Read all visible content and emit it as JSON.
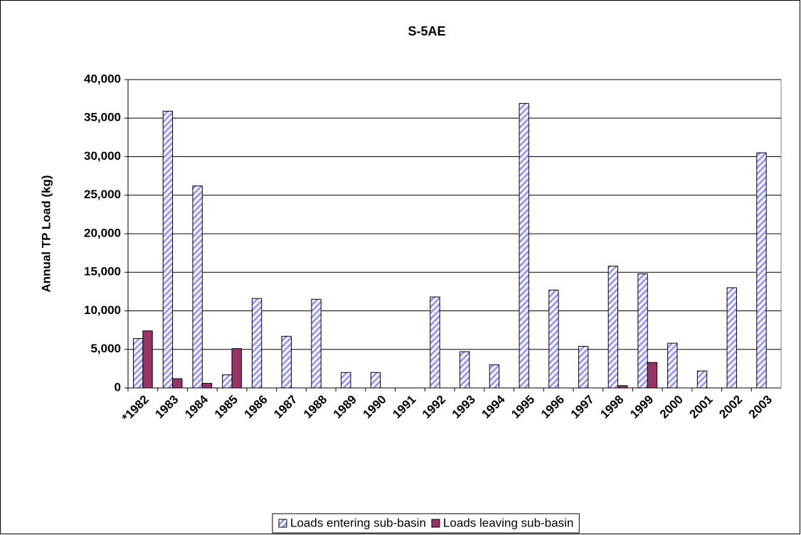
{
  "chart_data": {
    "type": "bar",
    "title": "S-5AE",
    "y_label": "Annual TP Load (kg)",
    "categories": [
      "*1982",
      "1983",
      "1984",
      "1985",
      "1986",
      "1987",
      "1988",
      "1989",
      "1990",
      "1991",
      "1992",
      "1993",
      "1994",
      "1995",
      "1996",
      "1997",
      "1998",
      "1999",
      "2000",
      "2001",
      "2002",
      "2003"
    ],
    "series": [
      {
        "name": "Loads entering sub-basin",
        "color": "#9999ff",
        "values": [
          6400,
          35900,
          26200,
          1700,
          11600,
          6700,
          11500,
          2000,
          2000,
          0,
          11800,
          4700,
          3000,
          36900,
          12700,
          5400,
          15800,
          14800,
          5800,
          2200,
          13000,
          30500
        ]
      },
      {
        "name": "Loads leaving sub-basin",
        "color": "#993366",
        "values": [
          7400,
          1200,
          600,
          5100,
          0,
          0,
          0,
          0,
          0,
          0,
          0,
          0,
          0,
          0,
          0,
          0,
          300,
          3300,
          0,
          0,
          0,
          0
        ]
      }
    ],
    "ylim": [
      0,
      40000
    ],
    "yticks": [
      0,
      {
        "value": 5000,
        "label": "5,000"
      },
      {
        "value": 10000,
        "label": "10,000"
      },
      {
        "value": 15000,
        "label": "15,000"
      },
      {
        "value": 20000,
        "label": "20,000"
      },
      {
        "value": 25000,
        "label": "25,000"
      },
      {
        "value": 30000,
        "label": "30,000"
      },
      {
        "value": 35000,
        "label": "35,000"
      },
      {
        "value": 40000,
        "label": "40,000"
      }
    ],
    "grid": true,
    "legend": "bottom"
  }
}
